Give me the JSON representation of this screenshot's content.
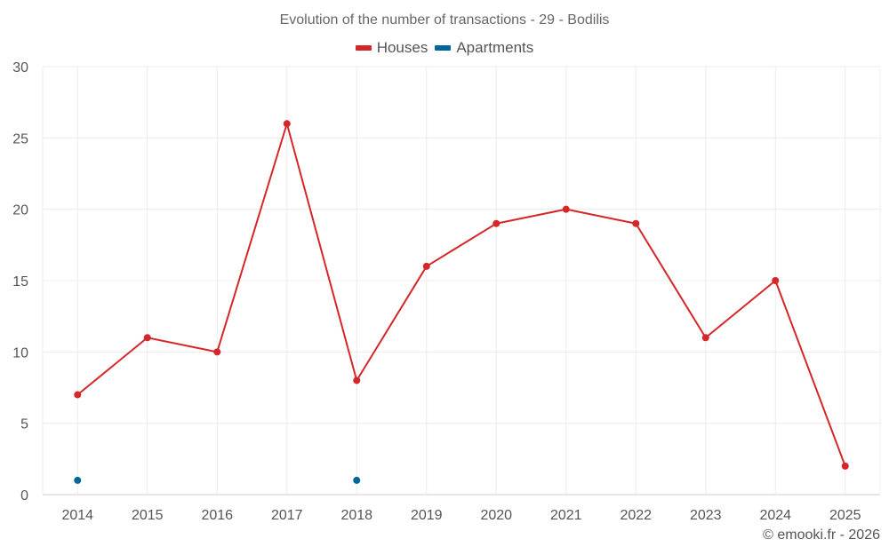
{
  "chart_data": {
    "type": "line",
    "title": "Evolution of the number of transactions - 29 - Bodilis",
    "xlabel": "",
    "ylabel": "",
    "categories": [
      "2014",
      "2015",
      "2016",
      "2017",
      "2018",
      "2019",
      "2020",
      "2021",
      "2022",
      "2023",
      "2024",
      "2025"
    ],
    "ylim": [
      0,
      30
    ],
    "yticks": [
      0,
      5,
      10,
      15,
      20,
      25,
      30
    ],
    "grid": true,
    "legend_position": "top-center",
    "series": [
      {
        "name": "Houses",
        "color": "#d62728",
        "values": [
          7,
          11,
          10,
          26,
          8,
          16,
          19,
          20,
          19,
          11,
          15,
          2
        ]
      },
      {
        "name": "Apartments",
        "color": "#006699",
        "values": [
          1,
          null,
          null,
          null,
          1,
          null,
          null,
          null,
          null,
          null,
          null,
          null
        ]
      }
    ]
  },
  "credit": "© emooki.fr - 2026"
}
